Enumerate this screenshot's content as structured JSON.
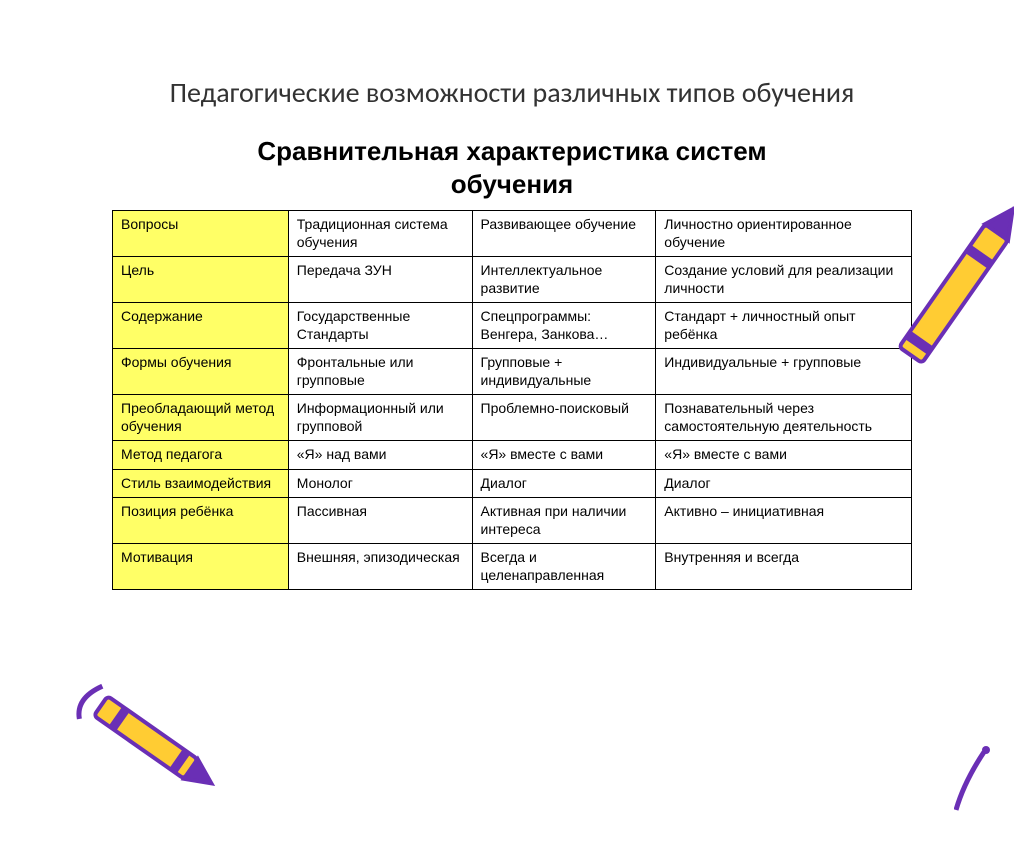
{
  "slide_title": "Педагогические возможности различных типов обучения",
  "table_title": "Сравнительная характеристика систем обучения",
  "colors": {
    "row_header_bg": "#ffff66",
    "border": "#000000",
    "crayon_body": "#ffcc33",
    "crayon_outline": "#6a2fb5",
    "crayon_tip": "#6a2fb5",
    "background": "#ffffff"
  },
  "columns": [
    "Вопросы",
    "Традиционная система обучения",
    "Развивающее обучение",
    "Личностно ориентированное обучение"
  ],
  "rows": [
    {
      "label": "Цель",
      "cells": [
        "Передача ЗУН",
        "Интеллектуальное развитие",
        "Создание условий для реализации личности"
      ]
    },
    {
      "label": "Содержание",
      "cells": [
        "Государственные Стандарты",
        "Спецпрограммы: Венгера, Занкова…",
        "Стандарт + личностный опыт ребёнка"
      ]
    },
    {
      "label": "Формы обучения",
      "cells": [
        "Фронтальные или групповые",
        "Групповые  + индивидуальные",
        "Индивидуальные + групповые"
      ]
    },
    {
      "label": "Преобладающий метод обучения",
      "cells": [
        "Информационный или групповой",
        "Проблемно-поисковый",
        "Познавательный через самостоятельную деятельность"
      ]
    },
    {
      "label": "Метод педагога",
      "cells": [
        "«Я» над вами",
        "«Я» вместе с вами",
        "«Я» вместе с вами"
      ]
    },
    {
      "label": "Стиль взаимодействия",
      "cells": [
        "Монолог",
        "Диалог",
        "Диалог"
      ]
    },
    {
      "label": "Позиция ребёнка",
      "cells": [
        "Пассивная",
        "Активная при наличии интереса",
        "Активно – инициативная"
      ]
    },
    {
      "label": "Мотивация",
      "cells": [
        "Внешняя, эпизодическая",
        "Всегда и целенаправленная",
        "Внутренняя и всегда"
      ]
    }
  ]
}
